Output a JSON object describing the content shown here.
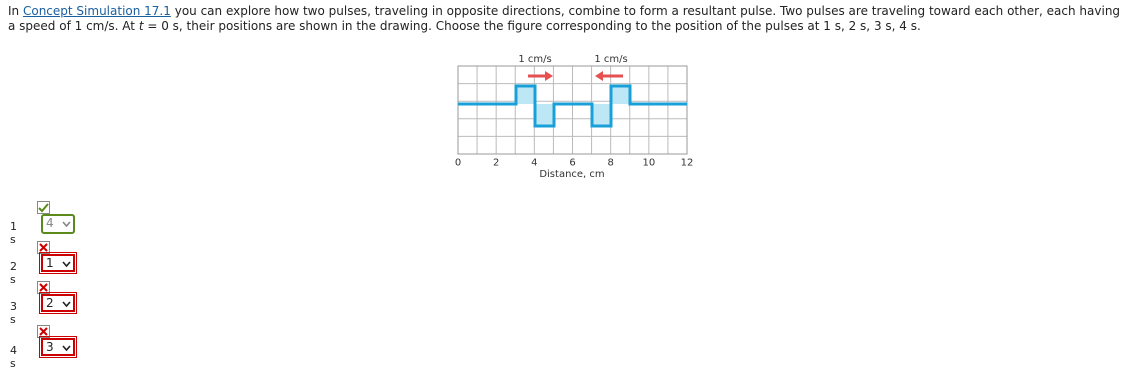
{
  "question": {
    "prefix": "In",
    "link": "Concept Simulation 17.1",
    "text1": "you can explore how two pulses, traveling in opposite directions, combine to form a resultant pulse. Two pulses are traveling toward each other, each having a speed of 1 cm/s. At",
    "t": "t",
    "text2": "= 0 s, their positions are shown in the drawing. Choose the figure corresponding to the position of the pulses at 1 s, 2 s, 3 s, 4 s."
  },
  "figure": {
    "speed_labels": [
      "1 cm/s",
      "1 cm/s"
    ],
    "x_ticks": [
      0,
      2,
      4,
      6,
      8,
      10,
      12
    ],
    "x_label": "Distance, cm"
  },
  "answers": [
    {
      "time": "1 s",
      "choice": "4",
      "status": "correct"
    },
    {
      "time": "2 s",
      "choice": "1",
      "status": "incorrect"
    },
    {
      "time": "3 s",
      "choice": "2",
      "status": "incorrect"
    },
    {
      "time": "4 s",
      "choice": "3",
      "status": "incorrect"
    }
  ]
}
